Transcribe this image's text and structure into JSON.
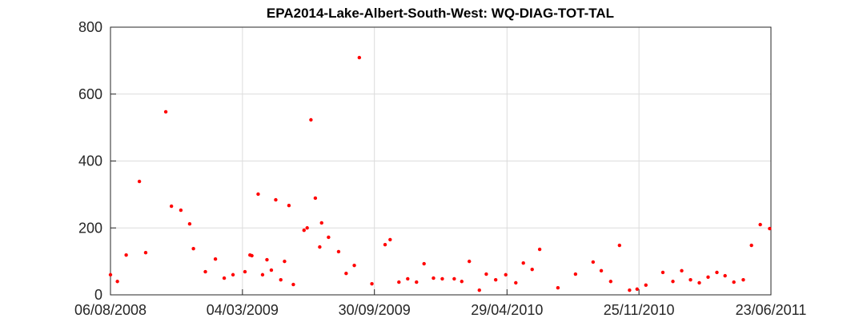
{
  "chart_data": {
    "type": "scatter",
    "title": "EPA2014-Lake-Albert-South-West: WQ-DIAG-TOT-TAL",
    "x": [
      "06/08/2008",
      "17/08/2008",
      "31/08/2008",
      "21/09/2008",
      "01/10/2008",
      "02/11/2008",
      "11/11/2008",
      "26/11/2008",
      "10/12/2008",
      "16/12/2008",
      "04/01/2009",
      "20/01/2009",
      "03/02/2009",
      "17/02/2009",
      "08/03/2009",
      "16/03/2009",
      "19/03/2009",
      "29/03/2009",
      "05/04/2009",
      "12/04/2009",
      "19/04/2009",
      "26/04/2009",
      "04/05/2009",
      "10/05/2009",
      "17/05/2009",
      "24/05/2009",
      "10/06/2009",
      "15/06/2009",
      "21/06/2009",
      "28/06/2009",
      "05/07/2009",
      "08/07/2009",
      "19/07/2009",
      "04/08/2009",
      "16/08/2009",
      "29/08/2009",
      "06/09/2009",
      "26/09/2009",
      "17/10/2009",
      "25/10/2009",
      "08/11/2009",
      "22/11/2009",
      "06/12/2009",
      "18/12/2009",
      "02/01/2010",
      "16/01/2010",
      "04/02/2010",
      "16/02/2010",
      "28/02/2010",
      "16/03/2010",
      "27/03/2010",
      "11/04/2010",
      "27/04/2010",
      "13/05/2010",
      "25/05/2010",
      "08/06/2010",
      "20/06/2010",
      "19/07/2010",
      "16/08/2010",
      "13/09/2010",
      "26/09/2010",
      "11/10/2010",
      "25/10/2010",
      "10/11/2010",
      "22/11/2010",
      "06/12/2010",
      "02/01/2011",
      "18/01/2011",
      "01/02/2011",
      "15/02/2011",
      "01/03/2011",
      "15/03/2011",
      "29/03/2011",
      "11/04/2011",
      "25/04/2011",
      "10/05/2011",
      "23/05/2011",
      "06/06/2011",
      "21/06/2011"
    ],
    "values": [
      60,
      40,
      119,
      339,
      126,
      547,
      265,
      253,
      212,
      138,
      69,
      107,
      50,
      60,
      69,
      119,
      117,
      301,
      60,
      105,
      74,
      284,
      45,
      100,
      267,
      31,
      193,
      200,
      523,
      289,
      143,
      215,
      172,
      129,
      64,
      88,
      709,
      33,
      150,
      165,
      38,
      48,
      38,
      93,
      50,
      48,
      48,
      40,
      100,
      14,
      62,
      45,
      60,
      36,
      95,
      76,
      136,
      21,
      62,
      98,
      72,
      40,
      148,
      14,
      17,
      29,
      67,
      40,
      72,
      45,
      36,
      53,
      67,
      57,
      38,
      45,
      148,
      210,
      198
    ],
    "color": "#ff0000",
    "xlim": [
      "06/08/2008",
      "23/06/2011"
    ],
    "xticks": [
      "06/08/2008",
      "04/03/2009",
      "30/09/2009",
      "29/04/2010",
      "25/11/2010",
      "23/06/2011"
    ],
    "ylim": [
      0,
      800
    ],
    "yticks": [
      0,
      200,
      400,
      600,
      800
    ],
    "grid": true
  }
}
